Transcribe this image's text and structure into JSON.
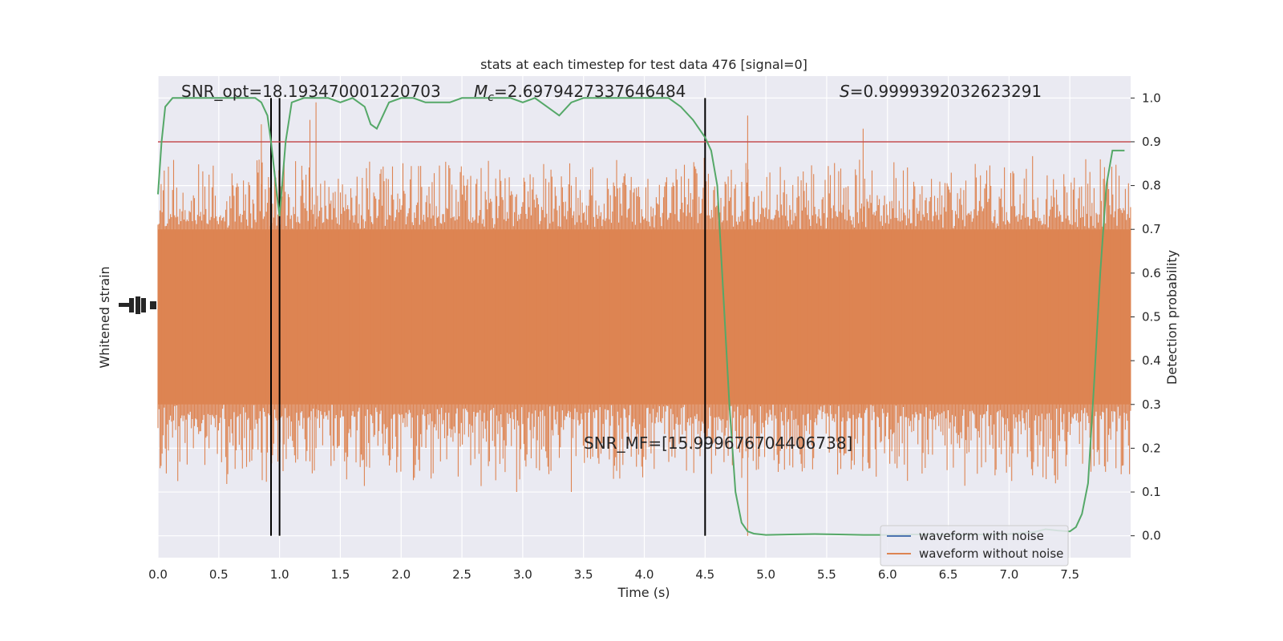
{
  "chart_data": {
    "type": "line",
    "title": "stats at each timestep for test data 476 [signal=0]",
    "xlabel": "Time (s)",
    "ylabel_left": "Whitened strain",
    "ylabel_right": "Detection probability",
    "xlim": [
      0.0,
      8.0
    ],
    "ylim_right": [
      -0.05,
      1.05
    ],
    "x_ticks": [
      "0.0",
      "0.5",
      "1.0",
      "1.5",
      "2.0",
      "2.5",
      "3.0",
      "3.5",
      "4.0",
      "4.5",
      "5.0",
      "5.5",
      "6.0",
      "6.5",
      "7.0",
      "7.5"
    ],
    "y_ticks_right": [
      "0.0",
      "0.1",
      "0.2",
      "0.3",
      "0.4",
      "0.5",
      "0.6",
      "0.7",
      "0.8",
      "0.9",
      "1.0"
    ],
    "grid": true,
    "legend_position": "bottom-right",
    "annotations": {
      "snr_opt": "SNR_opt=18.193470001220703",
      "mc_symbol": "M",
      "mc_sub": "c",
      "mc_value": "=2.6979427337646484",
      "s_symbol": "S",
      "s_value": "=0.9999392032623291",
      "snr_mf": "SNR_MF=[15.999676704406738]"
    },
    "threshold": {
      "value": 0.9,
      "color": "#c44e52"
    },
    "vertical_lines_x": [
      0.93,
      1.0,
      4.5
    ],
    "series": [
      {
        "name": "waveform with noise",
        "color": "#4c72b0",
        "values": []
      },
      {
        "name": "waveform without noise",
        "color": "#dd8452",
        "envelope_upper_prob": 0.7,
        "envelope_lower_prob": 0.3
      },
      {
        "color": "#55a868",
        "x": [
          0.0,
          0.03,
          0.06,
          0.12,
          0.2,
          0.3,
          0.4,
          0.5,
          0.6,
          0.7,
          0.8,
          0.85,
          0.9,
          0.93,
          0.97,
          1.0,
          1.05,
          1.1,
          1.2,
          1.3,
          1.4,
          1.5,
          1.6,
          1.7,
          1.75,
          1.8,
          1.85,
          1.9,
          2.0,
          2.1,
          2.2,
          2.3,
          2.4,
          2.5,
          2.6,
          2.7,
          2.8,
          2.9,
          3.0,
          3.1,
          3.2,
          3.3,
          3.4,
          3.5,
          3.6,
          3.7,
          3.8,
          3.9,
          4.0,
          4.1,
          4.2,
          4.3,
          4.4,
          4.5,
          4.55,
          4.6,
          4.65,
          4.7,
          4.75,
          4.8,
          4.85,
          4.9,
          5.0,
          5.2,
          5.4,
          5.6,
          5.8,
          6.0,
          6.2,
          6.4,
          6.6,
          6.8,
          7.0,
          7.2,
          7.3,
          7.4,
          7.5,
          7.55,
          7.6,
          7.65,
          7.7,
          7.75,
          7.8,
          7.85,
          7.9,
          7.95
        ],
        "values": [
          0.78,
          0.9,
          0.98,
          1.0,
          1.0,
          1.0,
          1.0,
          1.0,
          1.0,
          1.0,
          1.0,
          0.99,
          0.96,
          0.9,
          0.8,
          0.73,
          0.9,
          0.99,
          1.0,
          1.0,
          1.0,
          0.99,
          1.0,
          0.98,
          0.94,
          0.93,
          0.96,
          0.99,
          1.0,
          1.0,
          0.99,
          0.99,
          0.99,
          1.0,
          1.0,
          1.0,
          1.0,
          1.0,
          0.99,
          1.0,
          0.98,
          0.96,
          0.99,
          1.0,
          1.0,
          1.0,
          1.0,
          1.0,
          1.0,
          1.0,
          1.0,
          0.98,
          0.95,
          0.91,
          0.88,
          0.8,
          0.55,
          0.3,
          0.1,
          0.03,
          0.01,
          0.005,
          0.002,
          0.003,
          0.004,
          0.003,
          0.002,
          0.002,
          0.003,
          0.003,
          0.002,
          0.003,
          0.004,
          0.008,
          0.015,
          0.012,
          0.01,
          0.02,
          0.05,
          0.12,
          0.35,
          0.6,
          0.8,
          0.88,
          0.88,
          0.88
        ]
      }
    ]
  }
}
